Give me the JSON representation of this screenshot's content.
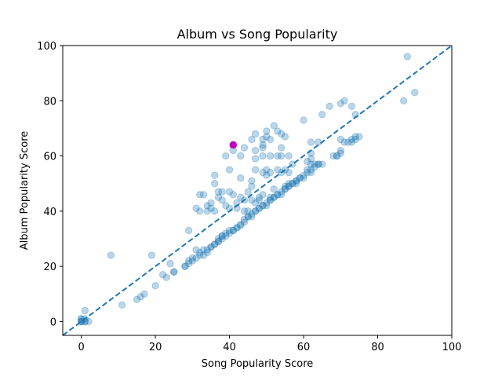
{
  "chart_data": {
    "type": "scatter",
    "title": "Album vs Song Popularity",
    "xlabel": "Song Popularity Score",
    "ylabel": "Album Popularity Score",
    "xlim": [
      -5,
      100
    ],
    "ylim": [
      -5,
      100
    ],
    "xticks": [
      0,
      20,
      40,
      60,
      80,
      100
    ],
    "yticks": [
      0,
      20,
      40,
      60,
      80,
      100
    ],
    "grid": false,
    "reference_line": {
      "style": "dashed",
      "from": [
        -5,
        -5
      ],
      "to": [
        100,
        100
      ],
      "color": "#1f77b4"
    },
    "series": [
      {
        "color": "#1f77b4",
        "opacity": 0.3,
        "points": [
          [
            0,
            0
          ],
          [
            0,
            0
          ],
          [
            0,
            1
          ],
          [
            1,
            0
          ],
          [
            0,
            0
          ],
          [
            1,
            1
          ],
          [
            2,
            0
          ],
          [
            1,
            4
          ],
          [
            0,
            1
          ],
          [
            1,
            0
          ],
          [
            8,
            24
          ],
          [
            11,
            6
          ],
          [
            15,
            8
          ],
          [
            16,
            9
          ],
          [
            17,
            10
          ],
          [
            19,
            24
          ],
          [
            20,
            13
          ],
          [
            22,
            17
          ],
          [
            23,
            16
          ],
          [
            24,
            21
          ],
          [
            25,
            18
          ],
          [
            25,
            18
          ],
          [
            28,
            20
          ],
          [
            28,
            20
          ],
          [
            29,
            21
          ],
          [
            29,
            22
          ],
          [
            30,
            22
          ],
          [
            30,
            23
          ],
          [
            31,
            23
          ],
          [
            31,
            26
          ],
          [
            32,
            24
          ],
          [
            32,
            25
          ],
          [
            33,
            24
          ],
          [
            33,
            26
          ],
          [
            34,
            25
          ],
          [
            34,
            26
          ],
          [
            35,
            27
          ],
          [
            35,
            27
          ],
          [
            36,
            28
          ],
          [
            36,
            28
          ],
          [
            37,
            29
          ],
          [
            37,
            29
          ],
          [
            37,
            30
          ],
          [
            38,
            30
          ],
          [
            38,
            31
          ],
          [
            38,
            31
          ],
          [
            39,
            31
          ],
          [
            39,
            32
          ],
          [
            40,
            32
          ],
          [
            40,
            33
          ],
          [
            41,
            33
          ],
          [
            41,
            33
          ],
          [
            42,
            34
          ],
          [
            42,
            34
          ],
          [
            43,
            35
          ],
          [
            43,
            35
          ],
          [
            44,
            36
          ],
          [
            44,
            37
          ],
          [
            45,
            38
          ],
          [
            45,
            38
          ],
          [
            46,
            38
          ],
          [
            46,
            39
          ],
          [
            47,
            40
          ],
          [
            47,
            40
          ],
          [
            48,
            41
          ],
          [
            48,
            41
          ],
          [
            49,
            42
          ],
          [
            49,
            42
          ],
          [
            50,
            42
          ],
          [
            50,
            43
          ],
          [
            51,
            44
          ],
          [
            51,
            44
          ],
          [
            52,
            45
          ],
          [
            52,
            45
          ],
          [
            53,
            46
          ],
          [
            53,
            46
          ],
          [
            54,
            46
          ],
          [
            55,
            48
          ],
          [
            56,
            49
          ],
          [
            56,
            49
          ],
          [
            57,
            50
          ],
          [
            58,
            50
          ],
          [
            58,
            51
          ],
          [
            59,
            52
          ],
          [
            60,
            53
          ],
          [
            61,
            54
          ],
          [
            62,
            54
          ],
          [
            62,
            55
          ],
          [
            63,
            57
          ],
          [
            64,
            57
          ],
          [
            65,
            57
          ],
          [
            68,
            60
          ],
          [
            69,
            60
          ],
          [
            70,
            61
          ],
          [
            70,
            62
          ],
          [
            72,
            65
          ],
          [
            73,
            66
          ],
          [
            74,
            67
          ],
          [
            75,
            67
          ],
          [
            87,
            80
          ],
          [
            88,
            96
          ],
          [
            90,
            83
          ],
          [
            29,
            33
          ],
          [
            31,
            41
          ],
          [
            32,
            40
          ],
          [
            32,
            46
          ],
          [
            33,
            46
          ],
          [
            34,
            40
          ],
          [
            34,
            42
          ],
          [
            35,
            41
          ],
          [
            35,
            43
          ],
          [
            36,
            40
          ],
          [
            36,
            50
          ],
          [
            36,
            53
          ],
          [
            37,
            45
          ],
          [
            37,
            47
          ],
          [
            38,
            44
          ],
          [
            38,
            47
          ],
          [
            39,
            42
          ],
          [
            39,
            60
          ],
          [
            40,
            41
          ],
          [
            40,
            47
          ],
          [
            40,
            55
          ],
          [
            41,
            46
          ],
          [
            41,
            62
          ],
          [
            42,
            41
          ],
          [
            42,
            43
          ],
          [
            43,
            45
          ],
          [
            43,
            52
          ],
          [
            43,
            60
          ],
          [
            44,
            40
          ],
          [
            44,
            44
          ],
          [
            44,
            63
          ],
          [
            45,
            40
          ],
          [
            45,
            47
          ],
          [
            46,
            44
          ],
          [
            46,
            49
          ],
          [
            46,
            51
          ],
          [
            46,
            66
          ],
          [
            47,
            43
          ],
          [
            47,
            55
          ],
          [
            47,
            59
          ],
          [
            47,
            62
          ],
          [
            47,
            68
          ],
          [
            48,
            44
          ],
          [
            48,
            45
          ],
          [
            49,
            46
          ],
          [
            49,
            54
          ],
          [
            49,
            60
          ],
          [
            49,
            63
          ],
          [
            49,
            64
          ],
          [
            49,
            66
          ],
          [
            50,
            53
          ],
          [
            50,
            55
          ],
          [
            50,
            67
          ],
          [
            50,
            69
          ],
          [
            51,
            45
          ],
          [
            51,
            54
          ],
          [
            51,
            60
          ],
          [
            51,
            66
          ],
          [
            52,
            48
          ],
          [
            52,
            71
          ],
          [
            53,
            55
          ],
          [
            53,
            60
          ],
          [
            53,
            69
          ],
          [
            54,
            47
          ],
          [
            54,
            54
          ],
          [
            54,
            60
          ],
          [
            54,
            63
          ],
          [
            54,
            68
          ],
          [
            55,
            48
          ],
          [
            55,
            49
          ],
          [
            55,
            55
          ],
          [
            55,
            67
          ],
          [
            56,
            50
          ],
          [
            56,
            54
          ],
          [
            56,
            60
          ],
          [
            57,
            50
          ],
          [
            57,
            57
          ],
          [
            58,
            51
          ],
          [
            59,
            52
          ],
          [
            60,
            52
          ],
          [
            60,
            73
          ],
          [
            61,
            55
          ],
          [
            61,
            58
          ],
          [
            62,
            57
          ],
          [
            62,
            59
          ],
          [
            62,
            61
          ],
          [
            62,
            65
          ],
          [
            63,
            56
          ],
          [
            64,
            57
          ],
          [
            64,
            65
          ],
          [
            65,
            75
          ],
          [
            67,
            78
          ],
          [
            69,
            60
          ],
          [
            70,
            66
          ],
          [
            70,
            79
          ],
          [
            71,
            65
          ],
          [
            71,
            80
          ],
          [
            73,
            65
          ],
          [
            73,
            78
          ],
          [
            74,
            66
          ],
          [
            74,
            75
          ]
        ]
      },
      {
        "color": "#bf00bf",
        "opacity": 1,
        "points": [
          [
            41,
            64
          ]
        ]
      }
    ]
  }
}
